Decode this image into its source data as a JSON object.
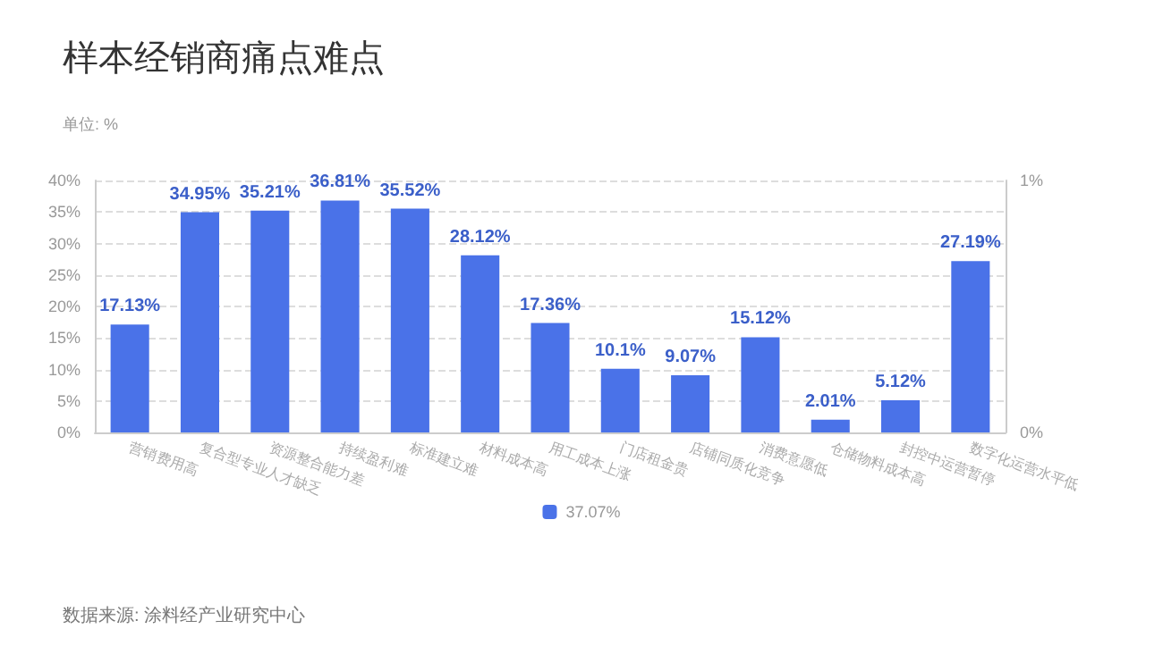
{
  "chart_data": {
    "type": "bar",
    "title": "样本经销商痛点难点",
    "subtitle": "单位: %",
    "annotations": [
      "数据来源: 涂料经产业研究中心"
    ],
    "categories": [
      "营销费用高",
      "复合型专业人才缺乏",
      "资源整合能力差",
      "持续盈利难",
      "标准建立难",
      "材料成本高",
      "用工成本上涨",
      "门店租金贵",
      "店铺同质化竞争",
      "消费意愿低",
      "仓储物料成本高",
      "封控中运营暂停",
      "数字化运营水平低"
    ],
    "series": [
      {
        "name": "37.07%",
        "color": "#4a72e8",
        "values": [
          17.13,
          34.95,
          35.21,
          36.81,
          35.52,
          28.12,
          17.36,
          10.1,
          9.07,
          15.12,
          2.01,
          5.12,
          27.19
        ],
        "value_labels": [
          "17.13%",
          "34.95%",
          "35.21%",
          "36.81%",
          "35.52%",
          "28.12%",
          "17.36%",
          "10.1%",
          "9.07%",
          "15.12%",
          "2.01%",
          "5.12%",
          "27.19%"
        ]
      }
    ],
    "ylim": [
      0,
      40
    ],
    "yticks": [
      {
        "value": 0,
        "label": "0%"
      },
      {
        "value": 5,
        "label": "5%"
      },
      {
        "value": 10,
        "label": "10%"
      },
      {
        "value": 15,
        "label": "15%"
      },
      {
        "value": 20,
        "label": "20%"
      },
      {
        "value": 25,
        "label": "25%"
      },
      {
        "value": 30,
        "label": "30%"
      },
      {
        "value": 35,
        "label": "35%"
      },
      {
        "value": 40,
        "label": "40%"
      }
    ],
    "y2lim": [
      0,
      1
    ],
    "y2ticks": [
      {
        "value": 0,
        "label": "0%"
      },
      {
        "value": 1,
        "label": "1%"
      }
    ],
    "grid": "y",
    "legend": "bottom"
  }
}
